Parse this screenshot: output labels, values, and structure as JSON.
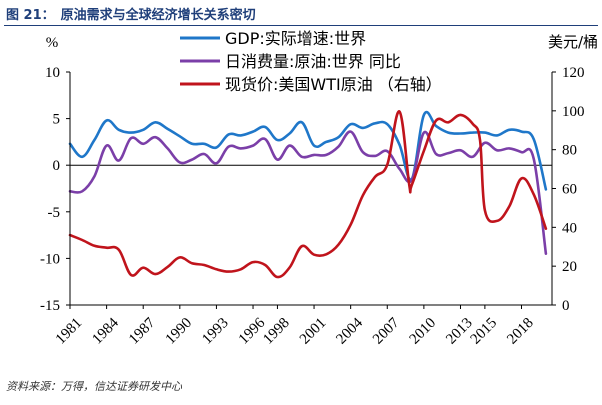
{
  "header": {
    "figure_label": "图 21：",
    "title": "原油需求与全球经济增长关系密切"
  },
  "footer": {
    "source": "资料来源：万得，信达证券研发中心"
  },
  "chart_data": {
    "type": "line",
    "left_unit": "%",
    "right_unit": "美元/桶",
    "left_axis": {
      "min": -15,
      "max": 10,
      "ticks": [
        10,
        5,
        0,
        -5,
        -10,
        -15
      ],
      "tick_labels": [
        "10",
        "5",
        "0",
        "-5",
        "-10",
        "-15"
      ]
    },
    "right_axis": {
      "min": 0,
      "max": 120,
      "ticks": [
        120,
        100,
        80,
        60,
        40,
        20,
        0
      ],
      "tick_labels": [
        "120",
        "100",
        "80",
        "60",
        "40",
        "20",
        "0"
      ]
    },
    "x_range": [
      1981,
      2020.5
    ],
    "x_ticks": [
      1981,
      1984,
      1987,
      1990,
      1993,
      1996,
      1998,
      2001,
      2004,
      2007,
      2010,
      2013,
      2015,
      2018
    ],
    "x_tick_labels": [
      "1981",
      "1984",
      "1987",
      "1990",
      "1993",
      "1996",
      "1998",
      "2001",
      "2004",
      "2007",
      "2010",
      "2013",
      "2015",
      "2018"
    ],
    "legend_position": "top-center",
    "series": [
      {
        "name": "GDP:实际增速:世界",
        "axis": "left",
        "color": "#1f77c9",
        "x": [
          1981,
          1982,
          1983,
          1984,
          1985,
          1986,
          1987,
          1988,
          1989,
          1990,
          1991,
          1992,
          1993,
          1994,
          1995,
          1996,
          1997,
          1998,
          1999,
          2000,
          2001,
          2002,
          2003,
          2004,
          2005,
          2006,
          2007,
          2008,
          2009,
          2010,
          2011,
          2012,
          2013,
          2014,
          2015,
          2016,
          2017,
          2018,
          2019,
          2020
        ],
        "values": [
          2.3,
          0.9,
          2.7,
          4.8,
          3.8,
          3.5,
          3.8,
          4.6,
          3.9,
          3.1,
          2.3,
          2.3,
          1.9,
          3.3,
          3.2,
          3.6,
          4.1,
          2.7,
          3.4,
          4.6,
          2.1,
          2.5,
          3.0,
          4.4,
          4.0,
          4.5,
          4.4,
          2.2,
          -1.5,
          5.4,
          4.2,
          3.5,
          3.4,
          3.5,
          3.5,
          3.2,
          3.8,
          3.6,
          2.8,
          -2.6
        ]
      },
      {
        "name": "日消费量:原油:世界 同比",
        "axis": "left",
        "color": "#7b3fa8",
        "x": [
          1981,
          1982,
          1983,
          1984,
          1985,
          1986,
          1987,
          1988,
          1989,
          1990,
          1991,
          1992,
          1993,
          1994,
          1995,
          1996,
          1997,
          1998,
          1999,
          2000,
          2001,
          2002,
          2003,
          2004,
          2005,
          2006,
          2007,
          2008,
          2009,
          2010,
          2011,
          2012,
          2013,
          2014,
          2015,
          2016,
          2017,
          2018,
          2019,
          2020
        ],
        "values": [
          -2.8,
          -2.8,
          -1.2,
          2.1,
          0.5,
          2.9,
          2.3,
          3.0,
          1.8,
          0.3,
          0.6,
          1.2,
          0.2,
          2.0,
          1.8,
          2.1,
          2.8,
          0.6,
          2.1,
          0.9,
          1.1,
          1.1,
          2.0,
          3.6,
          1.4,
          1.0,
          1.5,
          -0.4,
          -1.6,
          3.5,
          1.2,
          1.3,
          1.6,
          0.9,
          2.4,
          1.6,
          1.8,
          1.4,
          0.7,
          -9.5
        ]
      },
      {
        "name": "现货价:美国WTI原油 （右轴）",
        "axis": "right",
        "color": "#c0141c",
        "x": [
          1981,
          1982,
          1983,
          1984,
          1985,
          1986,
          1987,
          1988,
          1989,
          1990,
          1991,
          1992,
          1993,
          1994,
          1995,
          1996,
          1997,
          1998,
          1999,
          2000,
          2001,
          2002,
          2003,
          2004,
          2005,
          2006,
          2007,
          2008,
          2008.8,
          2009,
          2010,
          2011,
          2012,
          2013,
          2014,
          2014.6,
          2015,
          2016,
          2017,
          2018,
          2019,
          2020
        ],
        "values": [
          36.0,
          33.5,
          30.5,
          29.5,
          28.5,
          15.5,
          19.2,
          15.9,
          19.6,
          24.5,
          21.5,
          20.6,
          18.4,
          17.2,
          18.4,
          22.1,
          20.6,
          14.4,
          19.3,
          30.3,
          25.9,
          26.1,
          31.1,
          41.4,
          56.5,
          66.0,
          72.3,
          99.6,
          62.0,
          61.7,
          79.4,
          95.0,
          94.1,
          97.9,
          93.3,
          85.0,
          48.7,
          43.3,
          50.8,
          65.2,
          57.0,
          39.3
        ]
      }
    ]
  }
}
